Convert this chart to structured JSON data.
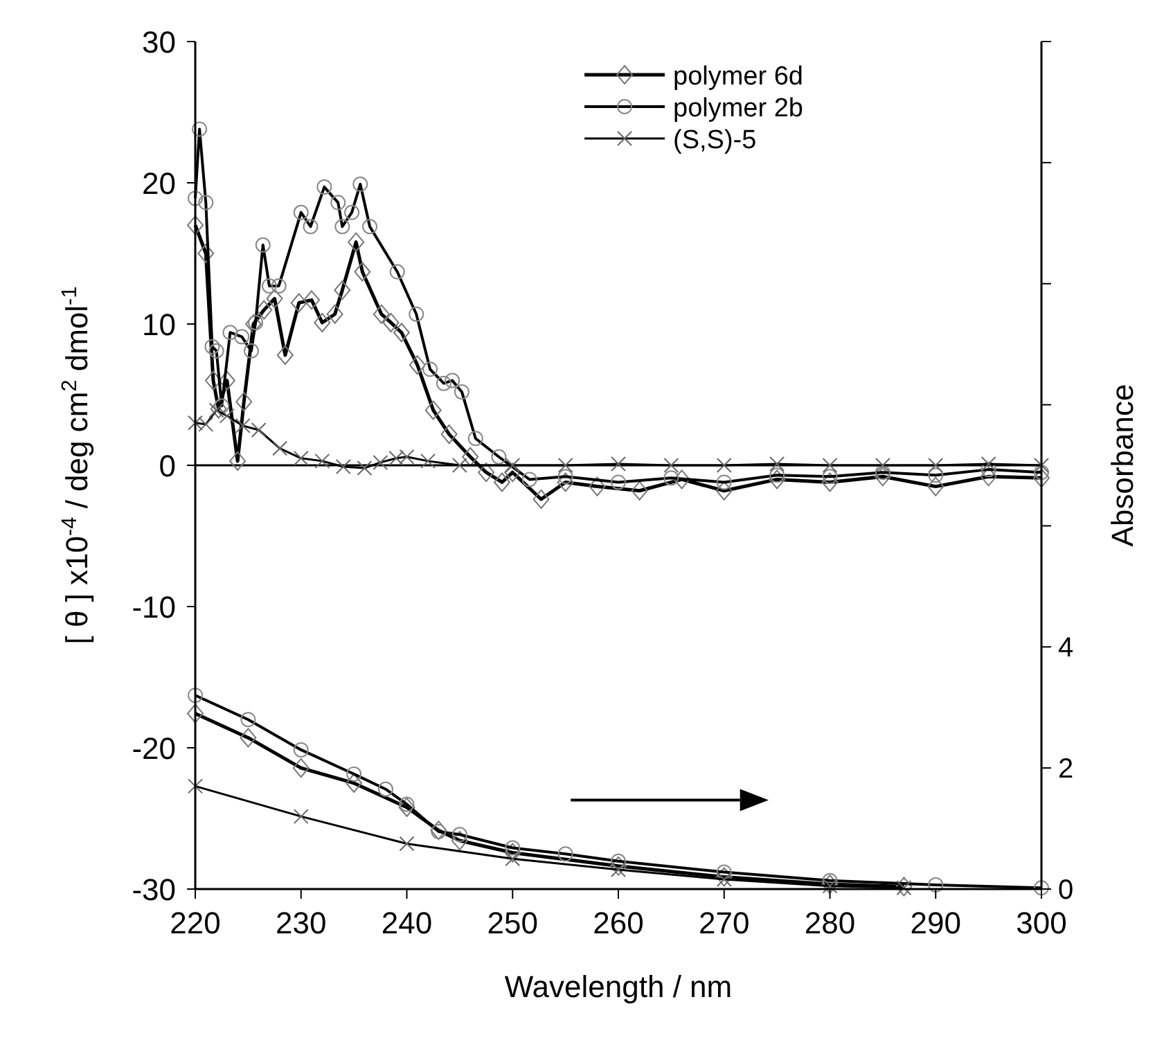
{
  "chart_data": {
    "type": "line",
    "xlabel": "Wavelength / nm",
    "ylabel": "[ θ ] x10$^{-4}$ / deg cm$^{2}$ dmol$^{-1}$",
    "y2label": "Absorbance",
    "xlim": [
      220,
      300
    ],
    "xticks": [
      220,
      230,
      240,
      250,
      260,
      270,
      280,
      290,
      300
    ],
    "ylim": [
      -30,
      30
    ],
    "yticks": [
      -30,
      -20,
      -10,
      0,
      10,
      20,
      30
    ],
    "y2lim": [
      0,
      14
    ],
    "y2ticks": [
      0,
      2,
      4,
      {
        "value": 6,
        "label": null
      },
      {
        "value": 8,
        "label": null
      },
      {
        "value": 10,
        "label": null
      },
      {
        "value": 12,
        "label": null
      },
      {
        "value": 14,
        "label": null
      }
    ],
    "legend": "top right",
    "grid": false,
    "ref_lines": [
      {
        "axis": "y",
        "value": 0
      }
    ],
    "series": [
      {
        "name": "polymer 6d",
        "color": "#000000",
        "marker": "diamond",
        "x": [
          220,
          221,
          221.7,
          222.2,
          223,
          224,
          224.6,
          225.5,
          226.5,
          227.5,
          228.5,
          229.8,
          231,
          232,
          233.2,
          233.9,
          235.2,
          235.8,
          237.6,
          238.5,
          239.5,
          241,
          242.5,
          244,
          246,
          247.5,
          249,
          250,
          252.7,
          255,
          258,
          262,
          266,
          270,
          275,
          280,
          285,
          290,
          295,
          300
        ],
        "values": [
          17,
          15,
          6,
          4,
          6,
          0.3,
          4.5,
          10,
          11,
          11.8,
          7.8,
          11.5,
          11.7,
          10.1,
          10.7,
          12.4,
          15.8,
          13.7,
          10.7,
          10.1,
          9.4,
          7.1,
          3.9,
          2.2,
          0.6,
          -0.5,
          -1.2,
          -0.5,
          -2.4,
          -1.2,
          -1.5,
          -1.8,
          -1,
          -1.8,
          -1,
          -1.2,
          -0.8,
          -1.5,
          -0.8,
          -0.9
        ]
      },
      {
        "name": "polymer 2b",
        "color": "#000000",
        "marker": "circle",
        "x": [
          220,
          220.4,
          221,
          221.6,
          222,
          222.5,
          223.3,
          224.4,
          225.3,
          225.7,
          226.4,
          227,
          227.9,
          230,
          230.9,
          232.2,
          233.5,
          233.9,
          234.8,
          235.6,
          236.5,
          239.1,
          240.9,
          242.2,
          243.5,
          244.3,
          245.2,
          246.5,
          248.7,
          251.6,
          255,
          260,
          265,
          270,
          275,
          280,
          285,
          290,
          295,
          300
        ],
        "values": [
          18.9,
          23.8,
          18.6,
          8.4,
          8.1,
          4.2,
          9.4,
          9.1,
          8.1,
          10.1,
          15.6,
          12.7,
          12.7,
          17.9,
          16.9,
          19.7,
          18.6,
          16.9,
          17.9,
          19.9,
          16.9,
          13.7,
          10.7,
          6.8,
          5.8,
          6,
          5.2,
          1.9,
          0.6,
          -1,
          -0.8,
          -1.2,
          -0.9,
          -1.2,
          -0.7,
          -0.8,
          -0.5,
          -0.7,
          -0.3,
          -0.5
        ]
      },
      {
        "name": "(S,S)-5",
        "color": "#000000",
        "marker": "cross",
        "x": [
          220,
          221,
          222,
          223,
          224.5,
          226,
          228,
          230,
          232,
          234,
          236,
          237.5,
          239,
          240,
          242,
          245,
          250,
          255,
          260,
          265,
          270,
          275,
          280,
          285,
          290,
          295,
          300
        ],
        "values": [
          3,
          2.9,
          3.9,
          3.5,
          2.8,
          2.5,
          1.2,
          0.5,
          0.3,
          -0.1,
          -0.2,
          0.2,
          0.5,
          0.6,
          0.3,
          0,
          0,
          0,
          0.1,
          0,
          0,
          0.1,
          0,
          0,
          0,
          0.1,
          0
        ]
      },
      {
        "color": "#000000",
        "marker": "diamond",
        "axis": "y2",
        "x": [
          220,
          225,
          230,
          235,
          240,
          243,
          245,
          250,
          260,
          270,
          280,
          287
        ],
        "values": [
          2.9,
          2.5,
          2.0,
          1.75,
          1.35,
          0.97,
          0.8,
          0.6,
          0.38,
          0.2,
          0.08,
          0.04
        ]
      },
      {
        "color": "#000000",
        "marker": "circle",
        "axis": "y2",
        "x": [
          220,
          225,
          230,
          235,
          238,
          240,
          243,
          245,
          250,
          255,
          260,
          270,
          280,
          290,
          300
        ],
        "values": [
          3.2,
          2.8,
          2.3,
          1.9,
          1.65,
          1.4,
          0.95,
          0.9,
          0.68,
          0.58,
          0.46,
          0.28,
          0.14,
          0.07,
          0.02
        ]
      },
      {
        "color": "#000000",
        "marker": "cross",
        "axis": "y2",
        "x": [
          220,
          230,
          240,
          250,
          260,
          270,
          280,
          287
        ],
        "values": [
          1.7,
          1.2,
          0.75,
          0.5,
          0.32,
          0.16,
          0.05,
          0.02
        ]
      }
    ]
  }
}
